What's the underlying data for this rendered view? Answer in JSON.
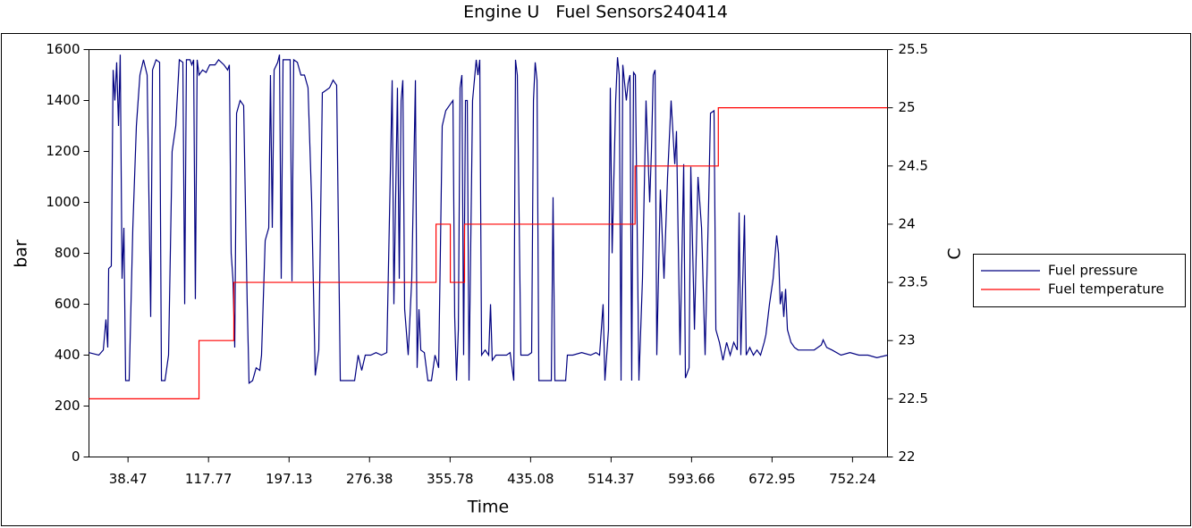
{
  "chart_data": {
    "type": "line",
    "title": "Engine U   Fuel Sensors240414",
    "x_label": "Time",
    "y_label": "bar",
    "y2_label": "C",
    "xlim": [
      0,
      786.7
    ],
    "xticks": [
      38.47,
      117.77,
      197.13,
      276.38,
      355.78,
      435.08,
      514.37,
      593.66,
      672.95,
      752.24
    ],
    "ylim": [
      0,
      1600
    ],
    "yticks": [
      0,
      200,
      400,
      600,
      800,
      1000,
      1200,
      1400,
      1600
    ],
    "y2lim": [
      22,
      25.5
    ],
    "y2ticks": [
      22,
      22.5,
      23,
      23.5,
      24,
      24.5,
      25,
      25.5
    ],
    "legend": "right",
    "series": [
      {
        "name": "Fuel pressure",
        "color": "#000080",
        "x": [
          0,
          9.7,
          14.1,
          16.7,
          18.5,
          19.4,
          22,
          23.8,
          25.5,
          27.3,
          29.1,
          30.8,
          32.6,
          34.4,
          36.1,
          39.6,
          43.2,
          46.7,
          50.2,
          53.7,
          57.3,
          60.8,
          62.6,
          66.1,
          69.6,
          71.4,
          74.9,
          78.4,
          81.9,
          85.5,
          89,
          92.5,
          94.3,
          96,
          99.6,
          101.3,
          103.1,
          104.8,
          106.6,
          108.4,
          111.9,
          115.4,
          118.9,
          124.2,
          127.7,
          133,
          136.6,
          138.3,
          140.1,
          141.8,
          143.6,
          145.4,
          148.9,
          152.4,
          155.9,
          157.7,
          161.2,
          164.7,
          168.3,
          170,
          173.6,
          177.1,
          178.8,
          180.6,
          182.4,
          185.9,
          187.7,
          189.4,
          191.2,
          194.7,
          198.2,
          200,
          201.7,
          205.3,
          208.8,
          212.3,
          215.8,
          219.4,
          222.9,
          226.4,
          229.9,
          233.5,
          237,
          240.5,
          244,
          247.6,
          251.1,
          256.4,
          261.7,
          265.2,
          268.7,
          272.2,
          277.5,
          282.8,
          288.1,
          293.4,
          298.7,
          300.4,
          303.9,
          305.7,
          307.5,
          309.2,
          311,
          314.5,
          318,
          321.6,
          323.3,
          325.1,
          326.9,
          330.4,
          333.9,
          337.4,
          340.9,
          344.5,
          348,
          351.5,
          355,
          358.6,
          360.3,
          362.1,
          363.9,
          365.6,
          367.4,
          369.1,
          370.9,
          372.7,
          374.4,
          377.9,
          381.5,
          383.2,
          385,
          386.8,
          390.3,
          393.8,
          395.6,
          397.3,
          400.9,
          406.1,
          411.4,
          414.9,
          418.5,
          420.2,
          422,
          425.5,
          429,
          432.6,
          436.1,
          437.9,
          439.6,
          441.4,
          443.2,
          446.7,
          450.2,
          455.5,
          457.2,
          459,
          464.3,
          469.6,
          471.3,
          476.6,
          485.4,
          494.2,
          499.5,
          503,
          506.5,
          508.3,
          511.8,
          513.6,
          515.4,
          518.9,
          520.7,
          522.4,
          524.2,
          525.9,
          529.4,
          531.2,
          533,
          534.7,
          536.5,
          538.3,
          541.8,
          545.3,
          548.8,
          552.4,
          554.1,
          555.9,
          557.7,
          559.4,
          562.9,
          566.5,
          570,
          573.5,
          577.1,
          578.8,
          582.3,
          585.9,
          587.6,
          591.2,
          592.9,
          596.5,
          600,
          603.5,
          607,
          610.5,
          612.3,
          615.8,
          617.6,
          621.1,
          624.6,
          628.2,
          631.7,
          635.2,
          638.7,
          640.5,
          642.2,
          645.8,
          647.5,
          651,
          654.6,
          658.1,
          661.6,
          665.2,
          666.9,
          670.4,
          674,
          677.5,
          679.3,
          681,
          682.8,
          684.5,
          686.3,
          688.1,
          691.6,
          695.1,
          698.6,
          705.7,
          714.5,
          721.5,
          723.3,
          726.8,
          732.1,
          740.9,
          749.7,
          758.5,
          767.4,
          776.2,
          786.7
        ],
        "values": [
          410,
          400,
          420,
          540,
          430,
          740,
          750,
          1520,
          1400,
          1550,
          1300,
          1580,
          700,
          900,
          300,
          300,
          900,
          1300,
          1500,
          1560,
          1500,
          550,
          1520,
          1560,
          1550,
          300,
          300,
          400,
          1200,
          1300,
          1560,
          1550,
          600,
          1560,
          1560,
          1540,
          1560,
          620,
          1560,
          1500,
          1520,
          1510,
          1540,
          1540,
          1560,
          1540,
          1520,
          1540,
          800,
          700,
          430,
          1350,
          1400,
          1380,
          600,
          290,
          300,
          350,
          340,
          400,
          850,
          900,
          1500,
          900,
          1520,
          1550,
          1580,
          700,
          1560,
          1560,
          1560,
          690,
          1560,
          1550,
          1500,
          1500,
          1450,
          1000,
          320,
          420,
          1430,
          1440,
          1450,
          1480,
          1460,
          300,
          300,
          300,
          300,
          400,
          340,
          400,
          400,
          410,
          400,
          410,
          1480,
          600,
          1450,
          700,
          1400,
          1480,
          580,
          400,
          700,
          1480,
          350,
          580,
          420,
          410,
          300,
          300,
          400,
          350,
          1300,
          1360,
          1380,
          1400,
          550,
          300,
          500,
          1450,
          1500,
          400,
          1400,
          1400,
          300,
          1400,
          1560,
          1500,
          1560,
          400,
          420,
          400,
          600,
          380,
          400,
          400,
          400,
          410,
          300,
          1560,
          1500,
          400,
          400,
          400,
          410,
          1400,
          1550,
          1480,
          300,
          300,
          300,
          300,
          1020,
          300,
          300,
          300,
          400,
          400,
          410,
          400,
          410,
          400,
          600,
          300,
          500,
          1450,
          800,
          1400,
          1570,
          1500,
          300,
          1540,
          1400,
          1470,
          1500,
          300,
          1510,
          1500,
          300,
          700,
          1400,
          1000,
          1200,
          1500,
          1520,
          400,
          1050,
          700,
          1100,
          1400,
          1150,
          1280,
          400,
          1150,
          310,
          350,
          1140,
          500,
          1100,
          900,
          400,
          1000,
          1350,
          1360,
          500,
          450,
          380,
          450,
          400,
          450,
          420,
          960,
          400,
          950,
          400,
          430,
          400,
          420,
          400,
          450,
          480,
          600,
          700,
          870,
          800,
          600,
          650,
          550,
          660,
          500,
          450,
          430,
          420,
          420,
          420,
          440,
          460,
          430,
          420,
          400,
          410,
          400,
          400,
          390,
          400
        ]
      },
      {
        "name": "Fuel temperature",
        "color": "#ff0000",
        "axis": "y2",
        "x": [
          0,
          108.4,
          108.4,
          142.7,
          142.7,
          341.9,
          341.9,
          356,
          356,
          370,
          370,
          538,
          538,
          620,
          620,
          786.7
        ],
        "values": [
          22.5,
          22.5,
          23,
          23,
          23.5,
          23.5,
          24,
          24,
          23.5,
          23.5,
          24,
          24,
          24.5,
          24.5,
          25,
          25
        ]
      }
    ]
  }
}
